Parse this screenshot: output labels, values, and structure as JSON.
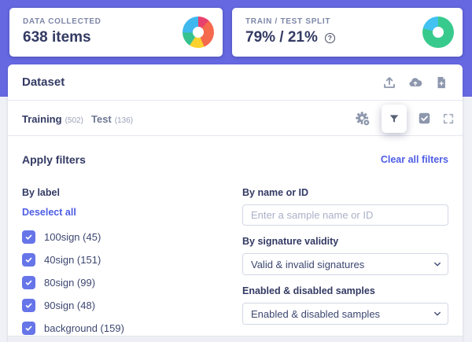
{
  "cards": {
    "data_collected": {
      "label": "DATA COLLECTED",
      "value": "638 items",
      "donut_segments": [
        {
          "color": "#e9416d",
          "deg": 42
        },
        {
          "color": "#f5694d",
          "deg": 116
        },
        {
          "color": "#fcd231",
          "deg": 55
        },
        {
          "color": "#36c28e",
          "deg": 55
        },
        {
          "color": "#3fb8ee",
          "deg": 92
        }
      ]
    },
    "train_test_split": {
      "label": "TRAIN / TEST SPLIT",
      "value": "79% / 21%",
      "help": "?",
      "donut_segments": [
        {
          "color": "#38ca8d",
          "deg": 284
        },
        {
          "color": "#41c2f0",
          "deg": 76
        }
      ]
    }
  },
  "panel": {
    "title": "Dataset",
    "tabs": [
      {
        "label": "Training",
        "count": "(502)",
        "active": true
      },
      {
        "label": "Test",
        "count": "(136)",
        "active": false
      }
    ],
    "filters": {
      "title": "Apply filters",
      "clear_label": "Clear all filters",
      "by_label": {
        "heading": "By label",
        "deselect_label": "Deselect all",
        "options": [
          {
            "label": "100sign (45)",
            "checked": true
          },
          {
            "label": "40sign (151)",
            "checked": true
          },
          {
            "label": "80sign (99)",
            "checked": true
          },
          {
            "label": "90sign (48)",
            "checked": true
          },
          {
            "label": "background (159)",
            "checked": true
          }
        ]
      },
      "by_name": {
        "heading": "By name or ID",
        "placeholder": "Enter a sample name or ID",
        "value": ""
      },
      "by_signature": {
        "heading": "By signature validity",
        "selected": "Valid & invalid signatures"
      },
      "by_enabled": {
        "heading": "Enabled & disabled samples",
        "selected": "Enabled & disabled samples"
      }
    }
  },
  "colors": {
    "header_background": "#6568e0",
    "link": "#4e5de5",
    "checkbox": "#6675e8",
    "heading_text": "#333a63",
    "icon_gray": "#8d97ad"
  }
}
